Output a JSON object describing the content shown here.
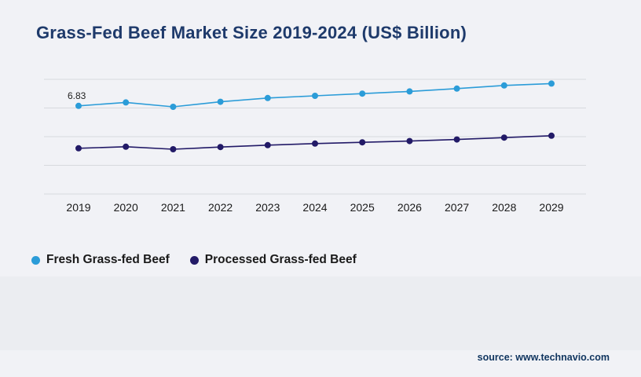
{
  "header": {
    "title": "Grass-Fed Beef Market Size 2019-2024 (US$ Billion)",
    "title_color": "#1e3a6b"
  },
  "chart_data": {
    "type": "line",
    "title": "Grass-Fed Beef Market Size 2019-2024 (US$ Billion)",
    "categories": [
      "2019",
      "2020",
      "2021",
      "2022",
      "2023",
      "2024",
      "2025",
      "2026",
      "2027",
      "2028",
      "2029"
    ],
    "series": [
      {
        "name": "Fresh Grass-fed Beef",
        "color": "#2b9cd8",
        "values": [
          6.83,
          6.94,
          6.8,
          6.96,
          7.08,
          7.15,
          7.22,
          7.29,
          7.38,
          7.48,
          7.54
        ]
      },
      {
        "name": "Processed Grass-fed Beef",
        "color": "#221a67",
        "values": [
          5.48,
          5.53,
          5.45,
          5.52,
          5.58,
          5.63,
          5.67,
          5.71,
          5.76,
          5.82,
          5.88
        ]
      }
    ],
    "ylim": [
      4.0,
      8.0
    ],
    "grid": true,
    "gridline_color": "#d7d9de",
    "legend_position": "bottom",
    "first_point_label": "6.83"
  },
  "footer": {
    "source_text": "source: www.technavio.com"
  }
}
